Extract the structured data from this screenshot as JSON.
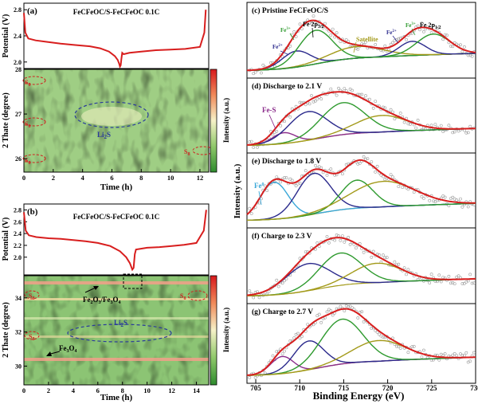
{
  "colors": {
    "fit_total": "#d81e1e",
    "curve_red": "#d81e1e",
    "fe2_navy": "#2b2a8c",
    "fe3_green": "#2e9a2e",
    "satellite_olive": "#a39a1a",
    "fe_s_purple": "#8b2c8b",
    "fe0_cyan": "#3aa7d8",
    "raw_gray": "#9a9a9a",
    "ellipse_red": "#d02020",
    "ellipse_blue": "#2a3b9b",
    "text_red": "#d02020",
    "text_blue": "#2a3b9b"
  },
  "chart_data": [
    {
      "id": "a",
      "type": "line",
      "panel_label": "(a)",
      "title": "FeCFeOC/S-FeCFeOC   0.1C",
      "ylabel": "Potential (V)",
      "ylim": [
        1.9,
        2.9
      ],
      "yticks": [
        "2.8",
        "2.4",
        "2.0"
      ],
      "x": [
        0,
        0.1,
        0.3,
        0.8,
        1.5,
        2.5,
        3.5,
        4.5,
        5.2,
        5.8,
        6.2,
        6.4,
        6.5,
        6.55,
        6.6,
        6.65,
        6.7,
        6.8,
        7.2,
        8,
        9,
        10,
        11,
        12,
        12.3,
        12.4
      ],
      "y": [
        2.75,
        2.45,
        2.36,
        2.33,
        2.31,
        2.28,
        2.26,
        2.24,
        2.21,
        2.16,
        2.09,
        2.03,
        1.97,
        1.93,
        1.95,
        2.05,
        2.14,
        2.12,
        2.14,
        2.16,
        2.18,
        2.19,
        2.2,
        2.23,
        2.45,
        2.8
      ]
    },
    {
      "id": "a-map",
      "type": "heatmap",
      "xlabel": "Time (h)",
      "ylabel": "2 Thate (degree)",
      "xlim": [
        0,
        12.6
      ],
      "ylim": [
        25.7,
        28.0
      ],
      "xticks": [
        "0",
        "2",
        "4",
        "6",
        "8",
        "10",
        "12"
      ],
      "yticks": [
        "28",
        "27",
        "26"
      ],
      "colorbar_label": "Intensity (a.u.)",
      "annotations": [
        "S8",
        "S8",
        "S8",
        "S8",
        "Li2S"
      ]
    },
    {
      "id": "b",
      "type": "line",
      "panel_label": "(b)",
      "title": "FeCFeOC/S-FeCFeOC   0.1C",
      "ylabel": "Potential (V)",
      "ylim": [
        1.7,
        2.9
      ],
      "yticks": [
        "2.8",
        "2.6",
        "2.4",
        "2.2",
        "2.0"
      ],
      "x": [
        0,
        0.15,
        0.4,
        1,
        2,
        3,
        4,
        5,
        6,
        7,
        7.8,
        8.3,
        8.6,
        8.8,
        8.9,
        9.0,
        9.1,
        9.4,
        10,
        11,
        12,
        13,
        14,
        14.6,
        14.8
      ],
      "y": [
        2.76,
        2.45,
        2.37,
        2.34,
        2.32,
        2.31,
        2.29,
        2.27,
        2.24,
        2.19,
        2.1,
        2.0,
        1.9,
        1.79,
        1.82,
        2.05,
        2.13,
        2.14,
        2.16,
        2.17,
        2.19,
        2.21,
        2.24,
        2.45,
        2.8
      ]
    },
    {
      "id": "b-map",
      "type": "heatmap",
      "xlabel": "Time (h)",
      "ylabel": "2 Thate (degree)",
      "xlim": [
        0,
        15
      ],
      "ylim": [
        28.9,
        35.3
      ],
      "xticks": [
        "0",
        "2",
        "4",
        "6",
        "8",
        "10",
        "12",
        "14"
      ],
      "yticks": [
        "34",
        "32",
        "30"
      ],
      "colorbar_label": "Intensity (a.u.)",
      "annotations": [
        "S8",
        "S8",
        "S8",
        "Fe2O3/Fe3O4",
        "Li2S",
        "Fe3O4"
      ]
    },
    {
      "id": "xps",
      "type": "line",
      "xlabel": "Binding Energy (eV)",
      "ylabel": "Intensity (a.u.)",
      "xlim": [
        704,
        730
      ],
      "xticks": [
        "705",
        "710",
        "715",
        "720",
        "725",
        "730"
      ],
      "panels": [
        {
          "label": "(c) Pristine FeCFeOC/S",
          "peaks": [
            {
              "name": "Fe2+",
              "species": "fe2",
              "center": 709.6,
              "height": 0.25,
              "width": 1.6
            },
            {
              "name": "Fe3+",
              "species": "fe3",
              "center": 711.8,
              "height": 0.52,
              "width": 1.9
            },
            {
              "name": "Satellite",
              "species": "sat",
              "center": 716.5,
              "height": 0.18,
              "width": 3.0
            },
            {
              "name": "Fe2+",
              "species": "fe2",
              "center": 722.8,
              "height": 0.22,
              "width": 1.5
            },
            {
              "name": "Fe3+",
              "species": "fe3",
              "center": 725.2,
              "height": 0.32,
              "width": 1.9
            }
          ],
          "labels": [
            "Fe3+",
            "Fe 2p",
            "Fe2+",
            "Satellite",
            "Fe2+",
            "Fe3+",
            "Fe 2p"
          ]
        },
        {
          "label": "(d) Discharge to 2.1 V",
          "peaks": [
            {
              "name": "Fe-S",
              "species": "fes",
              "center": 708.2,
              "height": 0.17,
              "width": 1.3
            },
            {
              "name": "Fe2+",
              "species": "fe2",
              "center": 710.9,
              "height": 0.45,
              "width": 2.2
            },
            {
              "name": "Fe3+",
              "species": "fe3",
              "center": 714.9,
              "height": 0.5,
              "width": 2.5
            },
            {
              "name": "Satellite",
              "species": "sat",
              "center": 719.3,
              "height": 0.26,
              "width": 2.9
            }
          ],
          "labels": [
            "Fe-S"
          ]
        },
        {
          "label": "(e) Discharge to 1.8 V",
          "peaks": [
            {
              "name": "Fe0",
              "species": "fe0",
              "center": 707.1,
              "height": 0.58,
              "width": 1.6
            },
            {
              "name": "Fe2+",
              "species": "fe2",
              "center": 711.6,
              "height": 0.64,
              "width": 1.9
            },
            {
              "name": "Fe3+",
              "species": "fe3",
              "center": 716.5,
              "height": 0.44,
              "width": 1.8
            },
            {
              "name": "Satellite",
              "species": "sat",
              "center": 719.5,
              "height": 0.4,
              "width": 3.6
            }
          ],
          "labels": [
            "Fe0"
          ]
        },
        {
          "label": "(f) Charge to 2.3 V",
          "peaks": [
            {
              "name": "Fe2+",
              "species": "fe2",
              "center": 710.9,
              "height": 0.42,
              "width": 2.5
            },
            {
              "name": "Fe3+",
              "species": "fe3",
              "center": 714.6,
              "height": 0.5,
              "width": 2.4
            },
            {
              "name": "Satellite",
              "species": "sat",
              "center": 718.8,
              "height": 0.3,
              "width": 2.8
            }
          ],
          "labels": []
        },
        {
          "label": "(g) Charge to 2.7 V",
          "peaks": [
            {
              "name": "Fe-S",
              "species": "fes",
              "center": 708.0,
              "height": 0.25,
              "width": 1.3
            },
            {
              "name": "Fe2+",
              "species": "fe2",
              "center": 711.0,
              "height": 0.42,
              "width": 1.7
            },
            {
              "name": "Fe3+",
              "species": "fe3",
              "center": 714.8,
              "height": 0.65,
              "width": 2.4
            },
            {
              "name": "Satellite",
              "species": "sat",
              "center": 719.0,
              "height": 0.3,
              "width": 3.0
            }
          ],
          "labels": []
        }
      ]
    }
  ]
}
